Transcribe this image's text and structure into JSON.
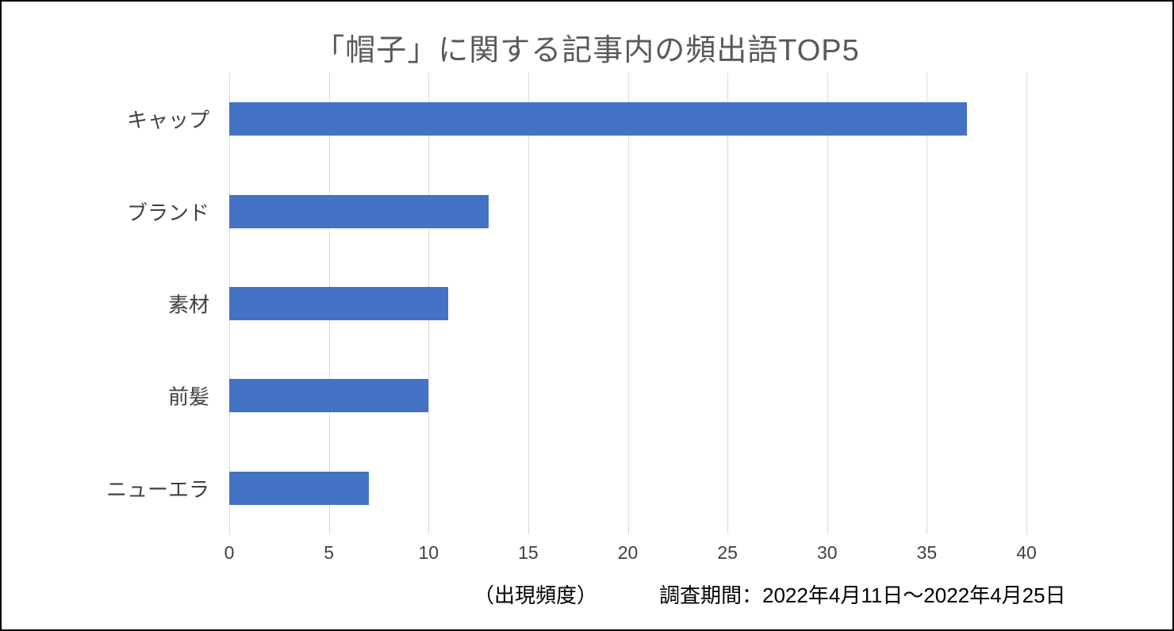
{
  "page": {
    "background_color": "#ffffff",
    "border_color": "#000000"
  },
  "chart_data": {
    "type": "bar",
    "orientation": "horizontal",
    "title": "「帽子」に関する記事内の頻出語TOP5",
    "title_color": "#595959",
    "categories": [
      "キャップ",
      "ブランド",
      "素材",
      "前髪",
      "ニューエラ"
    ],
    "values": [
      37,
      13,
      11,
      10,
      7
    ],
    "xlim": [
      0,
      40
    ],
    "xticks": [
      0,
      5,
      10,
      15,
      20,
      25,
      30,
      35,
      40
    ],
    "grid": true,
    "gridline_color": "#d9d9d9",
    "bar_color": "#4472c4",
    "xlabel": "（出現頻度）",
    "annotation": "調査期間：2022年4月11日〜2022年4月25日",
    "legend": "none"
  }
}
